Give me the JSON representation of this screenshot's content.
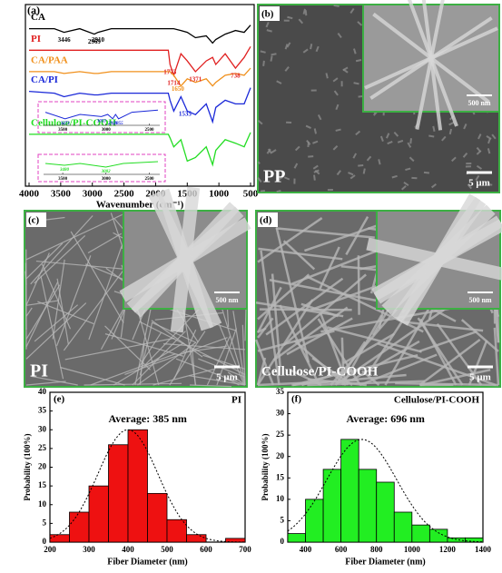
{
  "chart_data": [
    {
      "type": "line",
      "panel": "(a)",
      "xlabel": "Wavenumber (cm⁻¹)",
      "xlim": [
        4000,
        500
      ],
      "ylim": [
        0,
        100
      ],
      "xticks": [
        4000,
        3500,
        3000,
        2500,
        2000,
        1500,
        1000,
        500
      ],
      "x": [
        4000,
        3600,
        3446,
        3200,
        2969,
        2910,
        2700,
        2300,
        2000,
        1800,
        1773,
        1714,
        1600,
        1500,
        1371,
        1200,
        1100,
        1050,
        900,
        738,
        600,
        500
      ],
      "series": [
        {
          "name": "CA",
          "color": "#000000",
          "values": [
            88,
            88,
            86,
            88,
            85,
            86,
            88,
            88,
            88,
            88,
            88,
            88,
            87,
            86,
            83,
            84,
            80,
            82,
            85,
            87,
            86,
            90
          ]
        },
        {
          "name": "PI",
          "color": "#e02020",
          "values": [
            76,
            76,
            76,
            76,
            76,
            76,
            76,
            76,
            76,
            76,
            68,
            62,
            74,
            70,
            64,
            70,
            72,
            68,
            74,
            66,
            72,
            78
          ]
        },
        {
          "name": "CA/PAA",
          "color": "#f0901c",
          "values": [
            64,
            64,
            63,
            64,
            63,
            63,
            64,
            64,
            64,
            64,
            64,
            62,
            56,
            60,
            58,
            60,
            56,
            58,
            62,
            63,
            62,
            66
          ]
        },
        {
          "name": "CA/PI",
          "color": "#1a28d8",
          "values": [
            53,
            52,
            50,
            52,
            51,
            51,
            52,
            52,
            52,
            52,
            48,
            42,
            50,
            42,
            40,
            46,
            36,
            44,
            48,
            46,
            46,
            55
          ]
        },
        {
          "name": "Cellulose/PI-COOH",
          "color": "#22dd22",
          "values": [
            29,
            29,
            29,
            29,
            29,
            29,
            29,
            29,
            29,
            29,
            27,
            22,
            26,
            14,
            16,
            22,
            12,
            20,
            26,
            24,
            22,
            30
          ]
        }
      ],
      "annotations": [
        {
          "text": "3446",
          "series": 0
        },
        {
          "text": "2969",
          "series": 0
        },
        {
          "text": "2910",
          "series": 0
        },
        {
          "text": "1773",
          "series": 1
        },
        {
          "text": "1714",
          "series": 1
        },
        {
          "text": "1371",
          "series": 1
        },
        {
          "text": "738",
          "series": 1
        },
        {
          "text": "1650",
          "series": 2
        },
        {
          "text": "1535",
          "series": 3
        }
      ],
      "insets": [
        {
          "color": "#1a28d8",
          "xlim": [
            3700,
            2400
          ],
          "ylim": [
            0,
            10
          ],
          "xticks": [
            3500,
            3000,
            2500
          ],
          "x": [
            3700,
            3473,
            3300,
            3053,
            2980,
            2923,
            2890,
            2855,
            2700,
            2400
          ],
          "values": [
            6,
            3,
            5,
            4,
            5,
            3,
            5,
            3,
            6,
            7
          ],
          "labels": [
            "3473",
            "3053",
            "2923",
            "2855"
          ]
        },
        {
          "color": "#22dd22",
          "xlim": [
            3700,
            2400
          ],
          "ylim": [
            0,
            10
          ],
          "xticks": [
            3500,
            3000,
            2500
          ],
          "x": [
            3700,
            3480,
            3300,
            3002,
            2800,
            2400
          ],
          "values": [
            6,
            5,
            6,
            4,
            6,
            7
          ],
          "labels": [
            "3480",
            "3002"
          ]
        }
      ]
    },
    {
      "type": "histogram",
      "panel": "(e)",
      "title": "PI",
      "annotation": "Average: 385 nm",
      "color": "#ee1111",
      "xlabel": "Fiber Diameter (nm)",
      "ylabel": "Probability (100%)",
      "bins": [
        200,
        250,
        300,
        350,
        400,
        450,
        500,
        550,
        600,
        650,
        700
      ],
      "values": [
        2,
        8,
        15,
        26,
        30,
        13,
        6,
        2,
        0,
        1
      ],
      "xlim": [
        200,
        700
      ],
      "ylim": [
        0,
        40
      ],
      "xticks": [
        200,
        300,
        400,
        500,
        600,
        700
      ],
      "yticks": [
        0,
        5,
        10,
        15,
        20,
        25,
        30,
        35,
        40
      ]
    },
    {
      "type": "histogram",
      "panel": "(f)",
      "title": "Cellulose/PI-COOH",
      "annotation": "Average: 696 nm",
      "color": "#22ee22",
      "xlabel": "Fiber Diameter (nm)",
      "ylabel": "Probability (100%)",
      "bins": [
        300,
        400,
        500,
        600,
        700,
        800,
        900,
        1000,
        1100,
        1200,
        1300,
        1400
      ],
      "values": [
        2,
        10,
        17,
        24,
        17,
        14,
        7,
        4,
        3,
        1,
        1
      ],
      "xlim": [
        300,
        1400
      ],
      "ylim": [
        0,
        35
      ],
      "xticks": [
        400,
        600,
        800,
        1000,
        1200,
        1400
      ],
      "yticks": [
        0,
        5,
        10,
        15,
        20,
        25,
        30,
        35
      ]
    }
  ],
  "images": [
    {
      "panel": "(b)",
      "label": "PP",
      "scale": "5 μm",
      "inset_scale": "500 nm"
    },
    {
      "panel": "(c)",
      "label": "PI",
      "scale": "5 μm",
      "inset_scale": "500 nm"
    },
    {
      "panel": "(d)",
      "label": "Cellulose/PI-COOH",
      "scale": "5 μm",
      "inset_scale": "500 nm"
    }
  ]
}
